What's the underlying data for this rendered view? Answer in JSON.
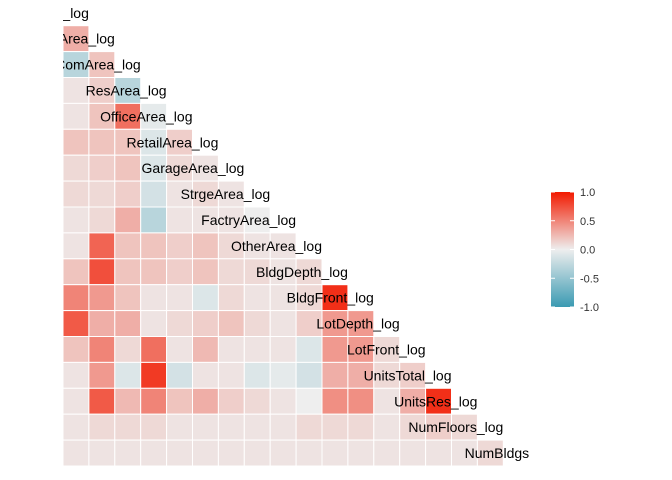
{
  "chart_data": {
    "type": "heatmap",
    "title": "",
    "variables": [
      "LotArea_log",
      "BldgArea_log",
      "ComArea_log",
      "ResArea_log",
      "OfficeArea_log",
      "RetailArea_log",
      "GarageArea_log",
      "StrgeArea_log",
      "FactryArea_log",
      "OtherArea_log",
      "BldgDepth_log",
      "BldgFront_log",
      "LotDepth_log",
      "LotFront_log",
      "UnitsTotal_log",
      "UnitsRes_log",
      "NumFloors_log",
      "NumBldgs"
    ],
    "correlations": [
      [],
      [
        0.3
      ],
      [
        -0.3,
        0.2
      ],
      [
        0.05,
        0.15,
        -0.3
      ],
      [
        0.05,
        0.2,
        0.6,
        -0.05
      ],
      [
        0.2,
        0.2,
        0.2,
        -0.1,
        0.15
      ],
      [
        0.1,
        0.15,
        0.2,
        -0.1,
        0.1,
        0.05
      ],
      [
        0.1,
        0.1,
        0.15,
        -0.15,
        0.05,
        0.1,
        0.05
      ],
      [
        0.05,
        0.1,
        0.3,
        -0.3,
        0.05,
        0.05,
        0.05,
        0.0
      ],
      [
        0.05,
        0.65,
        0.2,
        0.2,
        0.15,
        0.2,
        0.1,
        0.05,
        0.05
      ],
      [
        0.2,
        0.75,
        0.2,
        0.2,
        0.15,
        0.2,
        0.1,
        0.1,
        0.05,
        0.1
      ],
      [
        0.5,
        0.4,
        0.2,
        0.05,
        0.05,
        -0.1,
        0.1,
        0.05,
        0.05,
        0.1,
        0.9
      ],
      [
        0.7,
        0.3,
        0.3,
        0.05,
        0.1,
        0.15,
        0.2,
        0.1,
        0.05,
        0.15,
        0.4,
        0.4
      ],
      [
        0.2,
        0.5,
        0.1,
        0.6,
        0.05,
        0.25,
        0.05,
        0.05,
        0.05,
        -0.1,
        0.4,
        0.4,
        0.1
      ],
      [
        0.05,
        0.4,
        -0.1,
        0.85,
        -0.15,
        0.05,
        0.05,
        -0.1,
        -0.05,
        -0.15,
        0.3,
        0.3,
        0.1,
        0.15
      ],
      [
        0.05,
        0.7,
        0.25,
        0.5,
        0.2,
        0.3,
        0.15,
        0.1,
        0.05,
        0.0,
        0.45,
        0.45,
        0.05,
        0.3,
        0.9
      ],
      [
        0.05,
        0.1,
        0.1,
        0.1,
        0.05,
        0.05,
        0.05,
        0.05,
        0.05,
        0.1,
        0.1,
        0.1,
        0.05,
        0.1,
        0.15,
        0.1
      ],
      [
        0.05,
        0.05,
        0.05,
        0.05,
        0.05,
        0.05,
        0.05,
        0.05,
        0.05,
        0.05,
        0.05,
        0.05,
        0.05,
        0.05,
        0.05,
        0.05,
        0.1
      ]
    ],
    "legend": {
      "position": "right",
      "ticks": [
        "1.0",
        "0.5",
        "0.0",
        "-0.5",
        "-1.0"
      ],
      "range": [
        -1,
        1
      ]
    },
    "colors": {
      "low": "#3a9ab2",
      "mid": "#eeeeee",
      "high": "#f21a00"
    }
  }
}
